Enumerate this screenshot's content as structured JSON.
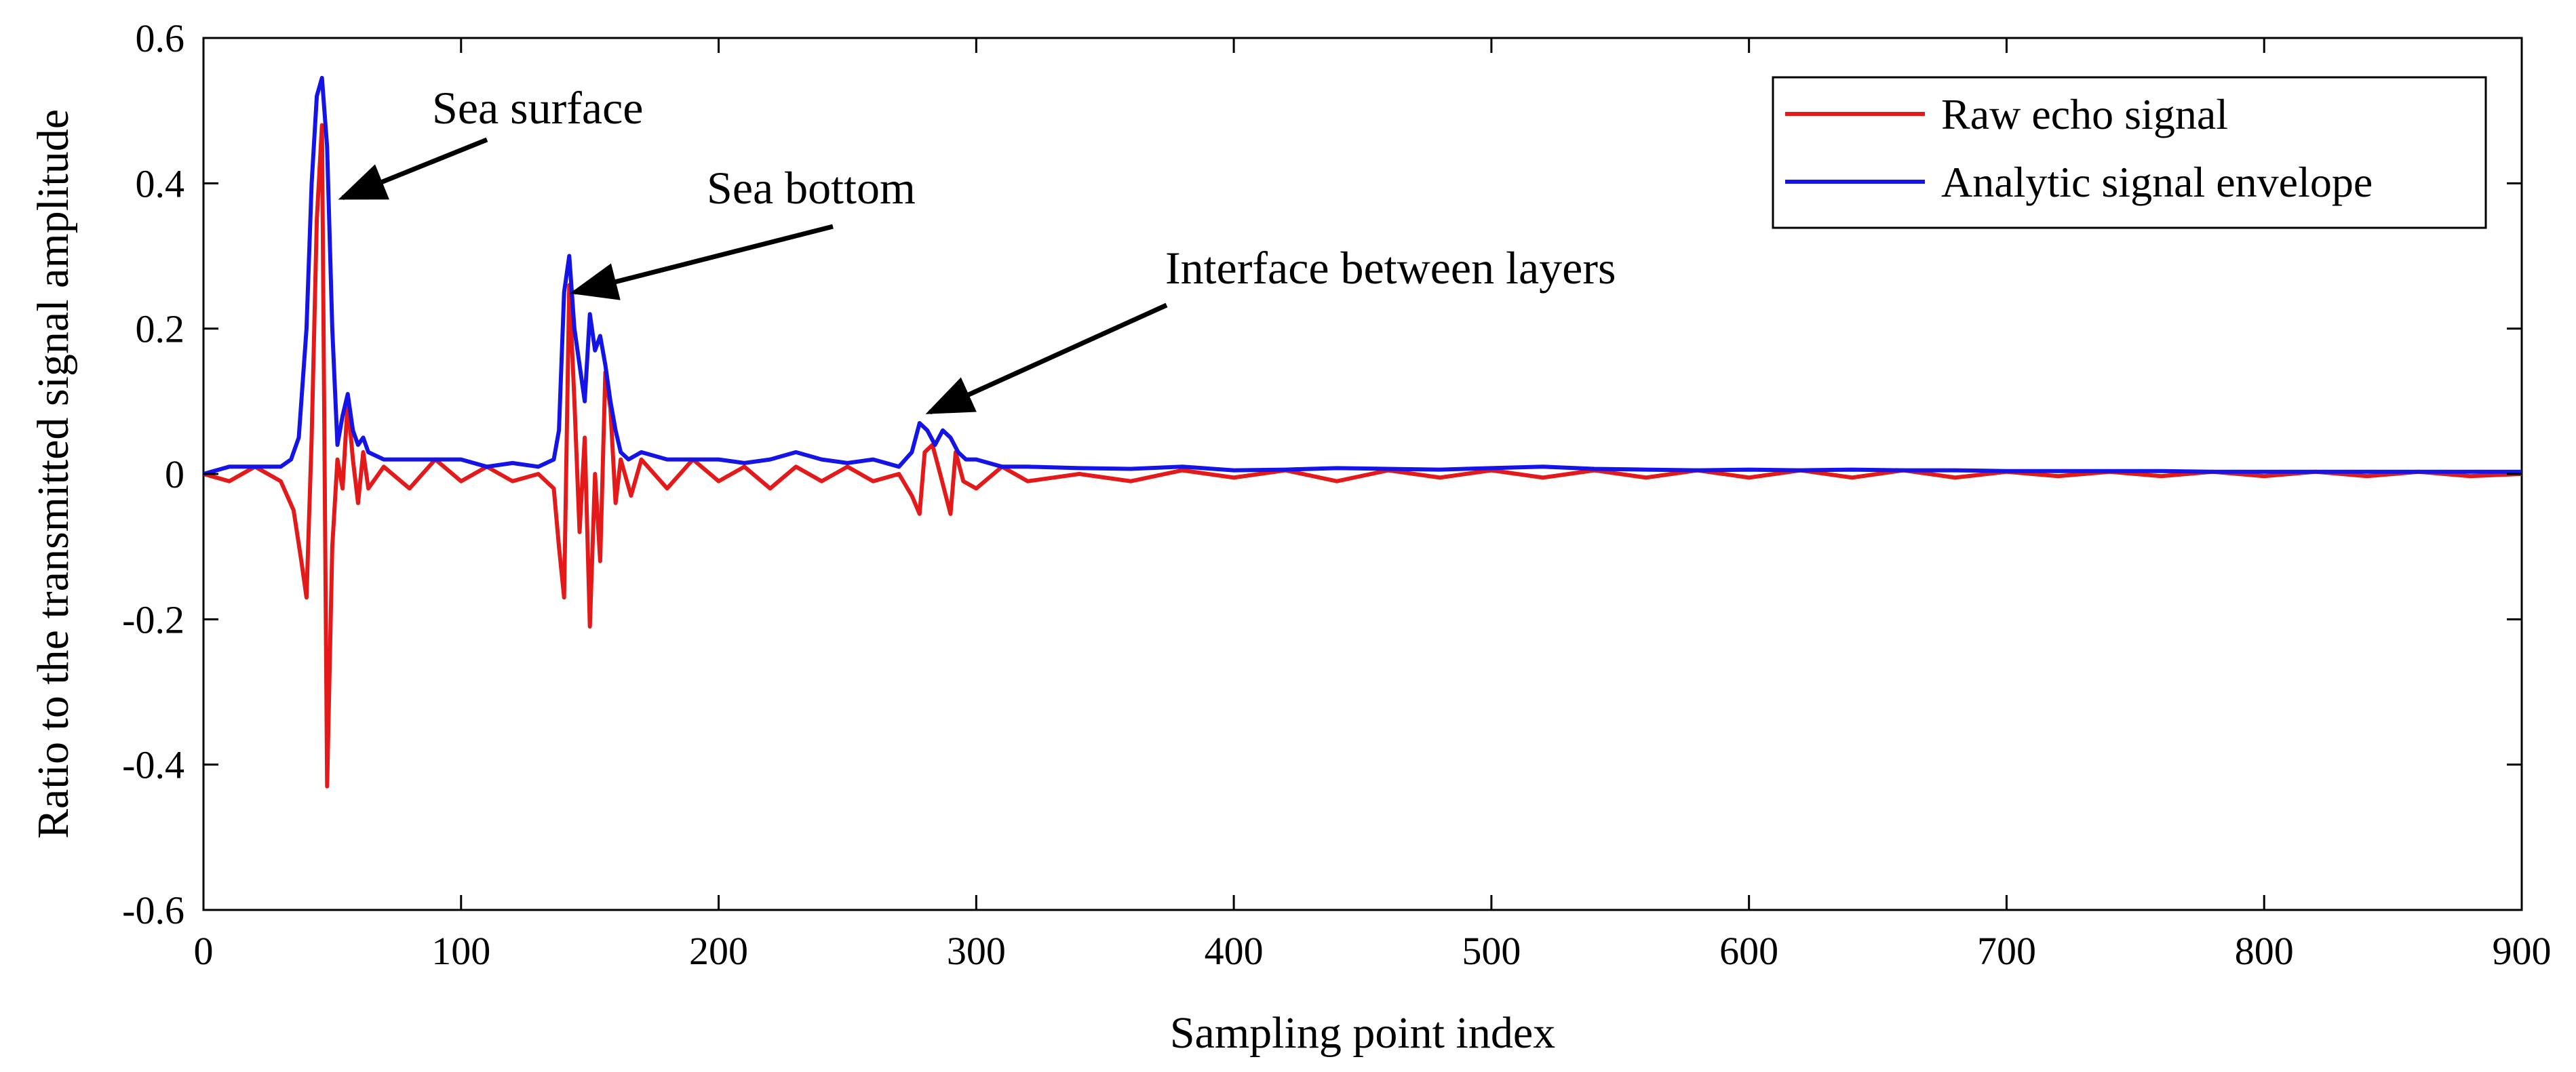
{
  "chart_data": {
    "type": "line",
    "title": "",
    "xlabel": "Sampling point index",
    "ylabel": "Ratio to the transmitted signal amplitude",
    "xlim": [
      0,
      900
    ],
    "ylim": [
      -0.6,
      0.6
    ],
    "xticks": [
      0,
      100,
      200,
      300,
      400,
      500,
      600,
      700,
      800,
      900
    ],
    "yticks": [
      0.6,
      0.4,
      0.2,
      0,
      -0.2,
      -0.4,
      -0.6
    ],
    "xtick_labels": [
      "0",
      "100",
      "200",
      "300",
      "400",
      "500",
      "600",
      "700",
      "800",
      "900"
    ],
    "ytick_labels": [
      "0.6",
      "0.4",
      "0.2",
      "0",
      "-0.2",
      "-0.4",
      "-0.6"
    ],
    "grid": false,
    "legend_position": "top-right",
    "series": [
      {
        "name": "Raw echo signal",
        "color": "#e41a1a",
        "x": [
          0,
          10,
          20,
          30,
          35,
          38,
          40,
          42,
          44,
          46,
          48,
          50,
          52,
          54,
          56,
          58,
          60,
          62,
          64,
          70,
          80,
          90,
          100,
          110,
          120,
          130,
          136,
          138,
          140,
          142,
          144,
          146,
          148,
          150,
          152,
          154,
          156,
          158,
          160,
          162,
          166,
          170,
          180,
          190,
          200,
          210,
          220,
          230,
          240,
          250,
          260,
          270,
          275,
          278,
          280,
          283,
          286,
          290,
          292,
          295,
          300,
          310,
          320,
          340,
          360,
          380,
          400,
          420,
          440,
          460,
          480,
          500,
          520,
          540,
          560,
          580,
          600,
          620,
          640,
          660,
          680,
          700,
          720,
          740,
          760,
          780,
          800,
          820,
          840,
          860,
          880,
          900
        ],
        "values": [
          0.0,
          -0.01,
          0.01,
          -0.01,
          -0.05,
          -0.12,
          -0.17,
          0.05,
          0.35,
          0.48,
          -0.43,
          -0.1,
          0.02,
          -0.02,
          0.1,
          0.02,
          -0.04,
          0.03,
          -0.02,
          0.01,
          -0.02,
          0.02,
          -0.01,
          0.01,
          -0.01,
          0.0,
          -0.02,
          -0.1,
          -0.17,
          0.26,
          0.1,
          -0.08,
          0.05,
          -0.21,
          0.0,
          -0.12,
          0.14,
          0.09,
          -0.04,
          0.02,
          -0.03,
          0.02,
          -0.02,
          0.02,
          -0.01,
          0.01,
          -0.02,
          0.01,
          -0.01,
          0.01,
          -0.01,
          0.0,
          -0.03,
          -0.055,
          0.03,
          0.04,
          0.0,
          -0.055,
          0.03,
          -0.01,
          -0.02,
          0.01,
          -0.01,
          0.0,
          -0.01,
          0.005,
          -0.005,
          0.005,
          -0.01,
          0.005,
          -0.005,
          0.005,
          -0.005,
          0.005,
          -0.005,
          0.005,
          -0.005,
          0.005,
          -0.005,
          0.005,
          -0.005,
          0.003,
          -0.003,
          0.003,
          -0.003,
          0.003,
          -0.003,
          0.003,
          -0.003,
          0.003,
          -0.003,
          0.0
        ]
      },
      {
        "name": "Analytic signal envelope",
        "color": "#1414e6",
        "x": [
          0,
          10,
          20,
          30,
          34,
          37,
          40,
          42,
          44,
          46,
          48,
          50,
          52,
          54,
          56,
          58,
          60,
          62,
          64,
          70,
          80,
          90,
          100,
          110,
          120,
          130,
          136,
          138,
          140,
          142,
          144,
          146,
          148,
          150,
          152,
          154,
          156,
          158,
          160,
          162,
          165,
          170,
          180,
          190,
          200,
          210,
          220,
          230,
          240,
          250,
          260,
          270,
          275,
          278,
          281,
          284,
          287,
          290,
          293,
          296,
          300,
          310,
          320,
          340,
          360,
          380,
          400,
          420,
          440,
          460,
          480,
          500,
          520,
          540,
          560,
          580,
          600,
          620,
          640,
          660,
          680,
          700,
          720,
          740,
          760,
          780,
          800,
          820,
          840,
          860,
          880,
          900
        ],
        "values": [
          0.0,
          0.01,
          0.01,
          0.01,
          0.02,
          0.05,
          0.2,
          0.4,
          0.52,
          0.545,
          0.45,
          0.2,
          0.04,
          0.08,
          0.11,
          0.06,
          0.04,
          0.05,
          0.03,
          0.02,
          0.02,
          0.02,
          0.02,
          0.01,
          0.015,
          0.01,
          0.02,
          0.06,
          0.25,
          0.3,
          0.2,
          0.15,
          0.1,
          0.22,
          0.17,
          0.19,
          0.15,
          0.1,
          0.06,
          0.03,
          0.02,
          0.03,
          0.02,
          0.02,
          0.02,
          0.015,
          0.02,
          0.03,
          0.02,
          0.015,
          0.02,
          0.01,
          0.03,
          0.07,
          0.06,
          0.04,
          0.06,
          0.05,
          0.03,
          0.02,
          0.02,
          0.01,
          0.01,
          0.008,
          0.007,
          0.01,
          0.005,
          0.006,
          0.008,
          0.007,
          0.006,
          0.008,
          0.01,
          0.007,
          0.006,
          0.005,
          0.006,
          0.005,
          0.006,
          0.005,
          0.005,
          0.004,
          0.004,
          0.004,
          0.004,
          0.003,
          0.003,
          0.003,
          0.003,
          0.003,
          0.003,
          0.003
        ]
      }
    ],
    "annotations": [
      {
        "text": "Sea surface",
        "target": [
          54,
          0.38
        ]
      },
      {
        "text": "Sea bottom",
        "target": [
          144,
          0.25
        ]
      },
      {
        "text": "Interface between layers",
        "target": [
          282,
          0.085
        ]
      }
    ]
  }
}
